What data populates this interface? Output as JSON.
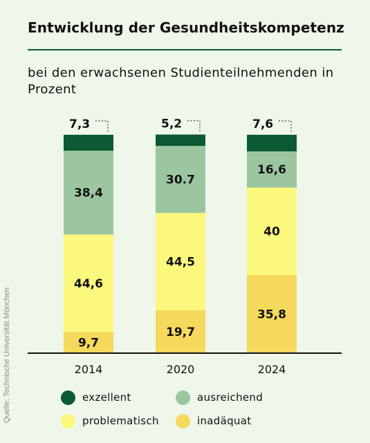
{
  "title": "Entwicklung der Gesundheitskompetenz",
  "subtitle": "bei den erwachsenen Studienteilnehmenden in Prozent",
  "source": "Quelle: Technische Universität München",
  "colors": {
    "excellent": "#0b5a33",
    "sufficient": "#9cc6a0",
    "problematic": "#fcf87e",
    "inadequate": "#f5d95c",
    "rule": "#0b5a33",
    "background": "#eef7ea"
  },
  "chart_data": {
    "type": "bar",
    "stacked": true,
    "categories": [
      "2014",
      "2020",
      "2024"
    ],
    "series": [
      {
        "name": "inadäquat",
        "key": "inadequate",
        "values": [
          9.7,
          19.7,
          35.8
        ],
        "labels": [
          "9,7",
          "19,7",
          "35,8"
        ]
      },
      {
        "name": "problematisch",
        "key": "problematic",
        "values": [
          44.6,
          44.5,
          40
        ],
        "labels": [
          "44,6",
          "44,5",
          "40"
        ]
      },
      {
        "name": "ausreichend",
        "key": "sufficient",
        "values": [
          38.4,
          30.7,
          16.6
        ],
        "labels": [
          "38,4",
          "30.7",
          "16,6"
        ]
      },
      {
        "name": "exzellent",
        "key": "excellent",
        "values": [
          7.3,
          5.2,
          7.6
        ],
        "labels": [
          "7,3",
          "5,2",
          "7,6"
        ]
      }
    ],
    "ylim": [
      0,
      100
    ],
    "grid": false,
    "legend_position": "bottom"
  },
  "legend": [
    {
      "key": "excellent",
      "label": "exzellent"
    },
    {
      "key": "sufficient",
      "label": "ausreichend"
    },
    {
      "key": "problematic",
      "label": "problematisch"
    },
    {
      "key": "inadequate",
      "label": "inadäquat"
    }
  ]
}
